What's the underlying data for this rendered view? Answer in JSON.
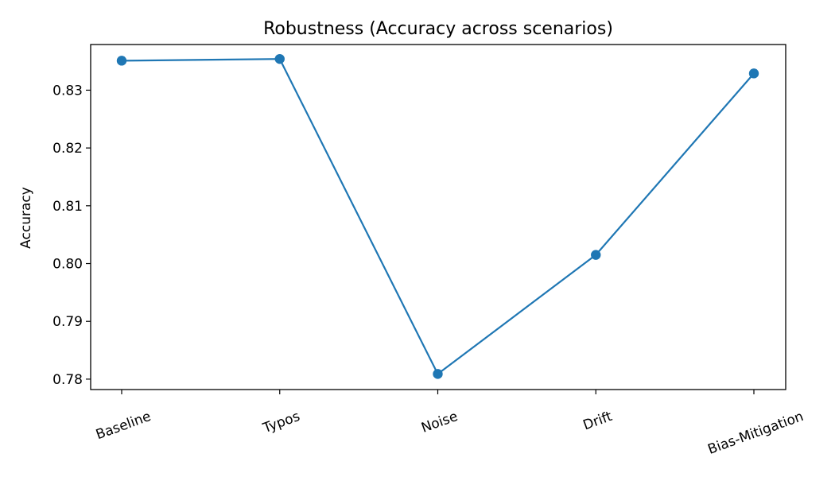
{
  "chart_data": {
    "type": "line",
    "title": "Robustness (Accuracy across scenarios)",
    "xlabel": "",
    "ylabel": "Accuracy",
    "categories": [
      "Baseline",
      "Typos",
      "Noise",
      "Drift",
      "Bias-Mitigation"
    ],
    "series": [
      {
        "values": [
          0.8351,
          0.8354,
          0.7809,
          0.8015,
          0.8329
        ],
        "color": "#1f77b4",
        "marker": "circle"
      }
    ],
    "yticks": [
      "0.78",
      "0.79",
      "0.80",
      "0.81",
      "0.82",
      "0.83"
    ],
    "ylim": [
      0.7782,
      0.8379
    ],
    "grid": false,
    "legend": "none"
  }
}
